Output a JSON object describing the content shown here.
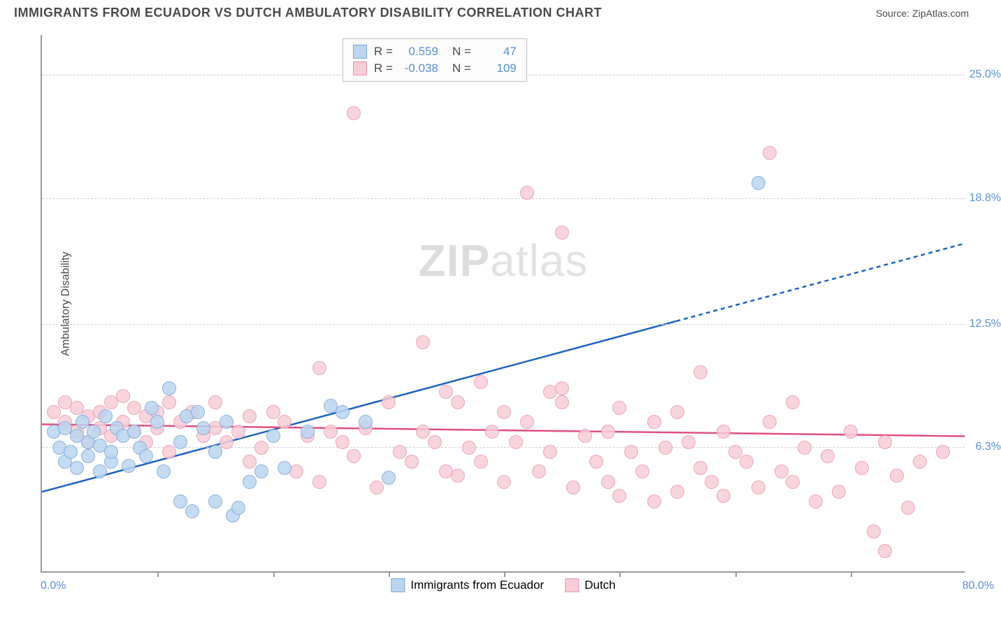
{
  "header": {
    "title": "IMMIGRANTS FROM ECUADOR VS DUTCH AMBULATORY DISABILITY CORRELATION CHART",
    "source_prefix": "Source: ",
    "source_name": "ZipAtlas.com"
  },
  "chart": {
    "type": "scatter",
    "xlim": [
      0,
      80
    ],
    "ylim": [
      0,
      27
    ],
    "y_ticks": [
      6.3,
      12.5,
      18.8,
      25.0
    ],
    "y_tick_labels": [
      "6.3%",
      "12.5%",
      "18.8%",
      "25.0%"
    ],
    "x_tick_positions": [
      10,
      20,
      30,
      40,
      50,
      60,
      70
    ],
    "x_min_label": "0.0%",
    "x_max_label": "80.0%",
    "y_axis_title": "Ambulatory Disability",
    "background_color": "#ffffff",
    "grid_color": "#d0d0d0",
    "axis_color": "#999999",
    "label_color": "#5a8fd6",
    "point_radius": 10,
    "series": {
      "ecuador": {
        "label": "Immigrants from Ecuador",
        "fill": "#bcd5f0",
        "stroke": "#7aa8d8",
        "r": 0.559,
        "n": 47,
        "trend": {
          "x1": 0,
          "y1": 4.0,
          "x2": 80,
          "y2": 16.5,
          "solid_until_x": 55
        },
        "trend_color": "#1e62c0",
        "trend_width": 2.5,
        "points": [
          [
            1,
            7.0
          ],
          [
            1.5,
            6.2
          ],
          [
            2,
            5.5
          ],
          [
            2,
            7.2
          ],
          [
            2.5,
            6.0
          ],
          [
            3,
            6.8
          ],
          [
            3,
            5.2
          ],
          [
            3.5,
            7.5
          ],
          [
            4,
            5.8
          ],
          [
            4,
            6.5
          ],
          [
            4.5,
            7.0
          ],
          [
            5,
            5.0
          ],
          [
            5,
            6.3
          ],
          [
            5.5,
            7.8
          ],
          [
            6,
            5.5
          ],
          [
            6,
            6.0
          ],
          [
            6.5,
            7.2
          ],
          [
            7,
            6.8
          ],
          [
            7.5,
            5.3
          ],
          [
            8,
            7.0
          ],
          [
            8.5,
            6.2
          ],
          [
            9,
            5.8
          ],
          [
            9.5,
            8.2
          ],
          [
            10,
            7.5
          ],
          [
            10.5,
            5.0
          ],
          [
            11,
            9.2
          ],
          [
            12,
            6.5
          ],
          [
            12,
            3.5
          ],
          [
            12.5,
            7.8
          ],
          [
            13,
            3.0
          ],
          [
            13.5,
            8.0
          ],
          [
            14,
            7.2
          ],
          [
            15,
            6.0
          ],
          [
            15,
            3.5
          ],
          [
            16,
            7.5
          ],
          [
            16.5,
            2.8
          ],
          [
            17,
            3.2
          ],
          [
            18,
            4.5
          ],
          [
            19,
            5.0
          ],
          [
            20,
            6.8
          ],
          [
            21,
            5.2
          ],
          [
            23,
            7.0
          ],
          [
            25,
            8.3
          ],
          [
            26,
            8.0
          ],
          [
            28,
            7.5
          ],
          [
            30,
            4.7
          ],
          [
            62,
            19.5
          ]
        ]
      },
      "dutch": {
        "label": "Dutch",
        "fill": "#f7cdd8",
        "stroke": "#e898b0",
        "r": -0.038,
        "n": 109,
        "trend": {
          "x1": 0,
          "y1": 7.4,
          "x2": 80,
          "y2": 6.8
        },
        "trend_color": "#e05080",
        "trend_width": 2.5,
        "points": [
          [
            1,
            8.0
          ],
          [
            2,
            7.5
          ],
          [
            2,
            8.5
          ],
          [
            3,
            7.0
          ],
          [
            3,
            8.2
          ],
          [
            4,
            7.8
          ],
          [
            4,
            6.5
          ],
          [
            5,
            8.0
          ],
          [
            5,
            7.2
          ],
          [
            6,
            8.5
          ],
          [
            6,
            6.8
          ],
          [
            7,
            7.5
          ],
          [
            7,
            8.8
          ],
          [
            8,
            7.0
          ],
          [
            8,
            8.2
          ],
          [
            9,
            6.5
          ],
          [
            9,
            7.8
          ],
          [
            10,
            8.0
          ],
          [
            10,
            7.2
          ],
          [
            11,
            8.5
          ],
          [
            11,
            6.0
          ],
          [
            12,
            7.5
          ],
          [
            13,
            8.0
          ],
          [
            14,
            6.8
          ],
          [
            15,
            7.2
          ],
          [
            15,
            8.5
          ],
          [
            16,
            6.5
          ],
          [
            17,
            7.0
          ],
          [
            18,
            5.5
          ],
          [
            18,
            7.8
          ],
          [
            19,
            6.2
          ],
          [
            20,
            8.0
          ],
          [
            21,
            7.5
          ],
          [
            22,
            5.0
          ],
          [
            23,
            6.8
          ],
          [
            24,
            10.2
          ],
          [
            24,
            4.5
          ],
          [
            25,
            7.0
          ],
          [
            26,
            6.5
          ],
          [
            27,
            5.8
          ],
          [
            27,
            23.0
          ],
          [
            28,
            7.2
          ],
          [
            29,
            4.2
          ],
          [
            30,
            8.5
          ],
          [
            31,
            6.0
          ],
          [
            32,
            5.5
          ],
          [
            33,
            7.0
          ],
          [
            33,
            11.5
          ],
          [
            34,
            6.5
          ],
          [
            35,
            5.0
          ],
          [
            35,
            9.0
          ],
          [
            36,
            8.5
          ],
          [
            36,
            4.8
          ],
          [
            37,
            6.2
          ],
          [
            38,
            9.5
          ],
          [
            38,
            5.5
          ],
          [
            39,
            7.0
          ],
          [
            40,
            8.0
          ],
          [
            40,
            4.5
          ],
          [
            41,
            6.5
          ],
          [
            42,
            7.5
          ],
          [
            42,
            19.0
          ],
          [
            43,
            5.0
          ],
          [
            44,
            9.0
          ],
          [
            44,
            6.0
          ],
          [
            45,
            9.2
          ],
          [
            45,
            8.5
          ],
          [
            45,
            17.0
          ],
          [
            46,
            4.2
          ],
          [
            47,
            6.8
          ],
          [
            48,
            5.5
          ],
          [
            49,
            7.0
          ],
          [
            49,
            4.5
          ],
          [
            50,
            8.2
          ],
          [
            50,
            3.8
          ],
          [
            51,
            6.0
          ],
          [
            52,
            5.0
          ],
          [
            53,
            7.5
          ],
          [
            53,
            3.5
          ],
          [
            54,
            6.2
          ],
          [
            55,
            8.0
          ],
          [
            55,
            4.0
          ],
          [
            56,
            6.5
          ],
          [
            57,
            5.2
          ],
          [
            57,
            10.0
          ],
          [
            58,
            4.5
          ],
          [
            59,
            7.0
          ],
          [
            59,
            3.8
          ],
          [
            60,
            6.0
          ],
          [
            61,
            5.5
          ],
          [
            62,
            4.2
          ],
          [
            63,
            7.5
          ],
          [
            63,
            21.0
          ],
          [
            64,
            5.0
          ],
          [
            65,
            8.5
          ],
          [
            65,
            4.5
          ],
          [
            66,
            6.2
          ],
          [
            67,
            3.5
          ],
          [
            68,
            5.8
          ],
          [
            69,
            4.0
          ],
          [
            70,
            7.0
          ],
          [
            71,
            5.2
          ],
          [
            72,
            2.0
          ],
          [
            73,
            6.5
          ],
          [
            73,
            1.0
          ],
          [
            74,
            4.8
          ],
          [
            75,
            3.2
          ],
          [
            76,
            5.5
          ],
          [
            78,
            6.0
          ]
        ]
      }
    },
    "legend_box": {
      "r_label": "R =",
      "n_label": "N ="
    },
    "watermark": {
      "zip": "ZIP",
      "atlas": "atlas"
    }
  }
}
